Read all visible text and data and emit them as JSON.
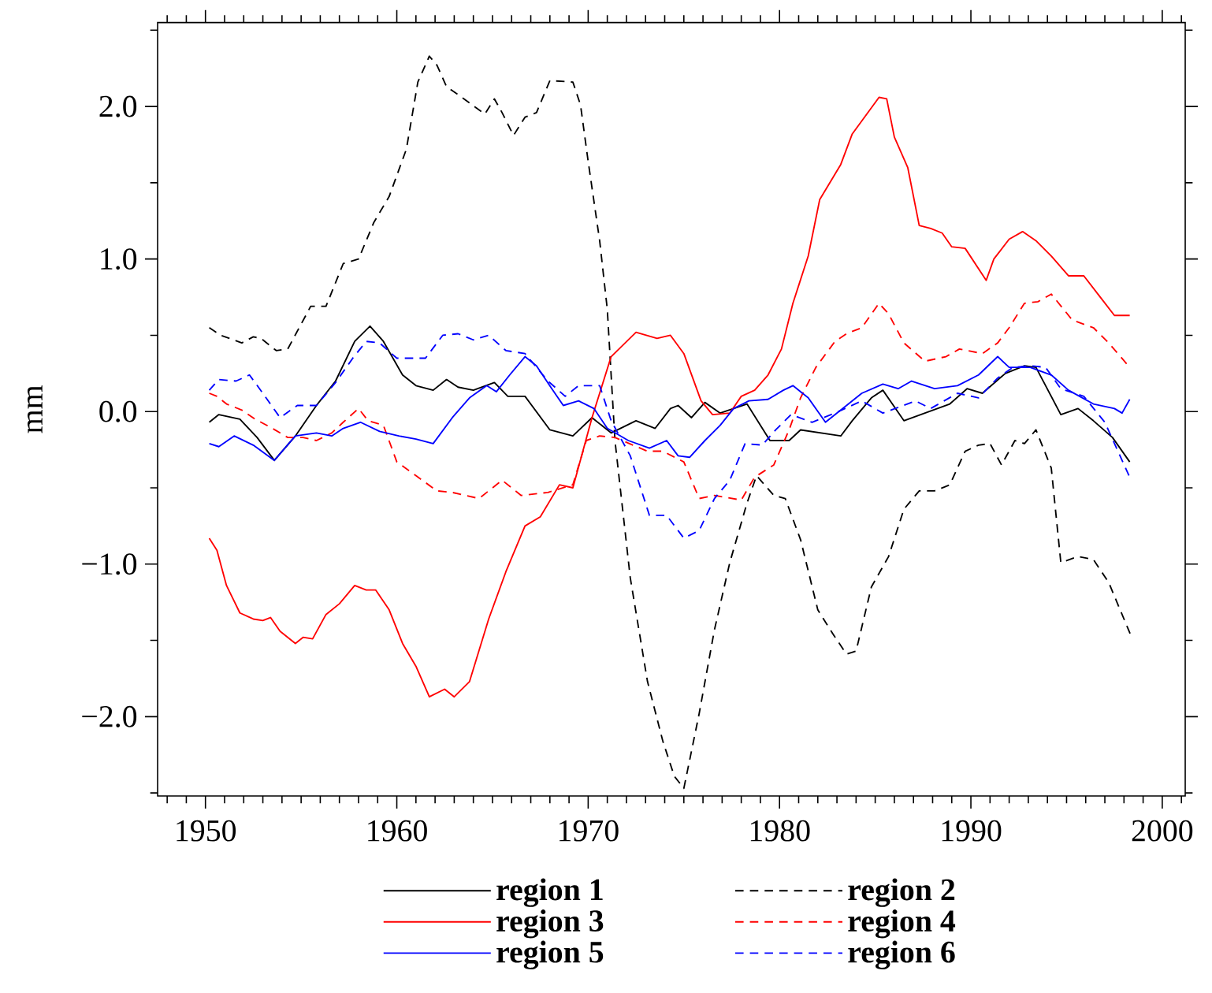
{
  "chart_data": {
    "type": "line",
    "ylabel": "mm",
    "xlim": [
      1947.5,
      2001.2
    ],
    "ylim": [
      -2.52,
      2.55
    ],
    "xticks": [
      {
        "value": 1948,
        "label": null
      },
      {
        "value": 1949,
        "label": null
      },
      1950,
      {
        "value": 1951,
        "label": null
      },
      {
        "value": 1952,
        "label": null
      },
      {
        "value": 1953,
        "label": null
      },
      {
        "value": 1954,
        "label": null
      },
      {
        "value": 1955,
        "label": null
      },
      {
        "value": 1956,
        "label": null
      },
      {
        "value": 1957,
        "label": null
      },
      {
        "value": 1958,
        "label": null
      },
      {
        "value": 1959,
        "label": null
      },
      1960,
      {
        "value": 1961,
        "label": null
      },
      {
        "value": 1962,
        "label": null
      },
      {
        "value": 1963,
        "label": null
      },
      {
        "value": 1964,
        "label": null
      },
      {
        "value": 1965,
        "label": null
      },
      {
        "value": 1966,
        "label": null
      },
      {
        "value": 1967,
        "label": null
      },
      {
        "value": 1968,
        "label": null
      },
      {
        "value": 1969,
        "label": null
      },
      1970,
      {
        "value": 1971,
        "label": null
      },
      {
        "value": 1972,
        "label": null
      },
      {
        "value": 1973,
        "label": null
      },
      {
        "value": 1974,
        "label": null
      },
      {
        "value": 1975,
        "label": null
      },
      {
        "value": 1976,
        "label": null
      },
      {
        "value": 1977,
        "label": null
      },
      {
        "value": 1978,
        "label": null
      },
      {
        "value": 1979,
        "label": null
      },
      1980,
      {
        "value": 1981,
        "label": null
      },
      {
        "value": 1982,
        "label": null
      },
      {
        "value": 1983,
        "label": null
      },
      {
        "value": 1984,
        "label": null
      },
      {
        "value": 1985,
        "label": null
      },
      {
        "value": 1986,
        "label": null
      },
      {
        "value": 1987,
        "label": null
      },
      {
        "value": 1988,
        "label": null
      },
      {
        "value": 1989,
        "label": null
      },
      1990,
      {
        "value": 1991,
        "label": null
      },
      {
        "value": 1992,
        "label": null
      },
      {
        "value": 1993,
        "label": null
      },
      {
        "value": 1994,
        "label": null
      },
      {
        "value": 1995,
        "label": null
      },
      {
        "value": 1996,
        "label": null
      },
      {
        "value": 1997,
        "label": null
      },
      {
        "value": 1998,
        "label": null
      },
      {
        "value": 1999,
        "label": null
      },
      2000,
      {
        "value": 2001,
        "label": null
      }
    ],
    "yticks": [
      {
        "value": -2.5,
        "label": null
      },
      {
        "value": -2,
        "label": "−2.0"
      },
      {
        "value": -1.5,
        "label": null
      },
      {
        "value": -1,
        "label": "−1.0"
      },
      {
        "value": -0.5,
        "label": null
      },
      {
        "value": 0,
        "label": "0.0"
      },
      {
        "value": 0.5,
        "label": null
      },
      {
        "value": 1,
        "label": "1.0"
      },
      {
        "value": 1.5,
        "label": null
      },
      {
        "value": 2,
        "label": "2.0"
      },
      {
        "value": 2.5,
        "label": null
      }
    ],
    "legend": "bottom",
    "grid": false,
    "marker": "none",
    "series": [
      {
        "name": "region 1",
        "color": "#000000",
        "line_style": "solid",
        "x": [
          1950.2,
          1950.7,
          1951.8,
          1952.7,
          1953.6,
          1954.7,
          1955.8,
          1956.8,
          1957.8,
          1958.6,
          1959.3,
          1960.3,
          1961.0,
          1961.9,
          1962.6,
          1963.2,
          1964.0,
          1965.1,
          1965.8,
          1966.7,
          1968.0,
          1969.2,
          1970.2,
          1971.2,
          1972.5,
          1973.5,
          1974.3,
          1974.7,
          1975.4,
          1976.1,
          1976.9,
          1978.3,
          1979.5,
          1980.5,
          1981.1,
          1983.2,
          1983.8,
          1984.8,
          1985.4,
          1986.5,
          1987.6,
          1988.9,
          1989.8,
          1990.6,
          1991.8,
          1992.8,
          1993.4,
          1994.7,
          1995.6,
          1996.4,
          1997.4,
          1998.3
        ],
        "values": [
          -0.07,
          -0.02,
          -0.05,
          -0.17,
          -0.32,
          -0.16,
          0.04,
          0.2,
          0.46,
          0.56,
          0.46,
          0.24,
          0.17,
          0.14,
          0.21,
          0.16,
          0.14,
          0.19,
          0.1,
          0.1,
          -0.12,
          -0.16,
          -0.04,
          -0.14,
          -0.06,
          -0.11,
          0.02,
          0.04,
          -0.04,
          0.06,
          -0.01,
          0.05,
          -0.19,
          -0.19,
          -0.12,
          -0.16,
          -0.06,
          0.09,
          0.14,
          -0.06,
          -0.01,
          0.05,
          0.15,
          0.12,
          0.25,
          0.3,
          0.29,
          -0.02,
          0.02,
          -0.06,
          -0.17,
          -0.33
        ]
      },
      {
        "name": "region 2",
        "color": "#000000",
        "line_style": "dashed",
        "x": [
          1950.2,
          1950.8,
          1951.9,
          1952.5,
          1952.9,
          1953.7,
          1954.3,
          1955.5,
          1956.3,
          1957.2,
          1958.0,
          1958.8,
          1959.6,
          1960.5,
          1961.1,
          1961.7,
          1962.1,
          1962.6,
          1963.4,
          1964.6,
          1965.1,
          1965.5,
          1966.1,
          1966.7,
          1967.3,
          1968.0,
          1969.2,
          1969.6,
          1970.0,
          1970.6,
          1971.0,
          1971.4,
          1972.2,
          1973.1,
          1973.9,
          1974.5,
          1975.0,
          1975.8,
          1976.6,
          1977.4,
          1978.3,
          1978.8,
          1979.7,
          1980.3,
          1981.1,
          1982.0,
          1982.8,
          1983.5,
          1984.0,
          1984.8,
          1985.7,
          1986.5,
          1987.3,
          1988.1,
          1988.9,
          1989.7,
          1990.4,
          1991.0,
          1991.6,
          1992.3,
          1992.8,
          1993.4,
          1994.2,
          1994.7,
          1995.6,
          1996.4,
          1997.2,
          1998.4
        ],
        "values": [
          0.55,
          0.5,
          0.45,
          0.49,
          0.48,
          0.4,
          0.41,
          0.69,
          0.69,
          0.97,
          1.0,
          1.24,
          1.41,
          1.72,
          2.16,
          2.33,
          2.27,
          2.13,
          2.06,
          1.95,
          2.05,
          1.96,
          1.81,
          1.93,
          1.96,
          2.17,
          2.16,
          2.01,
          1.64,
          1.12,
          0.67,
          -0.19,
          -1.09,
          -1.77,
          -2.16,
          -2.39,
          -2.47,
          -1.98,
          -1.43,
          -0.99,
          -0.6,
          -0.42,
          -0.55,
          -0.57,
          -0.84,
          -1.3,
          -1.46,
          -1.59,
          -1.57,
          -1.15,
          -0.95,
          -0.64,
          -0.52,
          -0.52,
          -0.48,
          -0.26,
          -0.22,
          -0.21,
          -0.35,
          -0.19,
          -0.21,
          -0.12,
          -0.37,
          -0.99,
          -0.95,
          -0.97,
          -1.12,
          -1.48
        ]
      },
      {
        "name": "region 3",
        "color": "#ff0000",
        "line_style": "solid",
        "x": [
          1950.2,
          1950.6,
          1951.1,
          1951.8,
          1952.5,
          1953.0,
          1953.4,
          1953.9,
          1954.7,
          1955.1,
          1955.6,
          1956.3,
          1957.0,
          1957.8,
          1958.4,
          1958.9,
          1959.6,
          1960.3,
          1961.0,
          1961.7,
          1962.5,
          1963.0,
          1963.8,
          1964.8,
          1965.7,
          1966.7,
          1967.5,
          1968.5,
          1969.2,
          1970.2,
          1971.2,
          1972.5,
          1973.6,
          1974.3,
          1975.0,
          1975.9,
          1976.5,
          1977.4,
          1978.0,
          1978.7,
          1979.4,
          1980.1,
          1980.7,
          1981.5,
          1982.1,
          1983.2,
          1983.8,
          1985.2,
          1985.6,
          1986.0,
          1986.7,
          1987.3,
          1987.9,
          1988.5,
          1989.0,
          1989.7,
          1990.8,
          1991.2,
          1992.0,
          1992.7,
          1993.4,
          1994.2,
          1995.1,
          1995.9,
          1996.7,
          1997.5,
          1998.3
        ],
        "values": [
          -0.83,
          -0.91,
          -1.14,
          -1.32,
          -1.36,
          -1.37,
          -1.35,
          -1.44,
          -1.52,
          -1.48,
          -1.49,
          -1.33,
          -1.26,
          -1.14,
          -1.17,
          -1.17,
          -1.3,
          -1.52,
          -1.67,
          -1.87,
          -1.82,
          -1.87,
          -1.77,
          -1.36,
          -1.05,
          -0.75,
          -0.69,
          -0.48,
          -0.5,
          -0.04,
          0.36,
          0.52,
          0.48,
          0.5,
          0.38,
          0.07,
          -0.02,
          -0.01,
          0.1,
          0.14,
          0.24,
          0.41,
          0.71,
          1.02,
          1.39,
          1.62,
          1.82,
          2.06,
          2.05,
          1.8,
          1.6,
          1.22,
          1.2,
          1.17,
          1.08,
          1.07,
          0.86,
          1.0,
          1.13,
          1.18,
          1.12,
          1.02,
          0.89,
          0.89,
          0.76,
          0.63,
          0.63
        ]
      },
      {
        "name": "region 4",
        "color": "#ff0000",
        "line_style": "dashed",
        "x": [
          1950.2,
          1950.6,
          1951.1,
          1951.9,
          1952.6,
          1953.5,
          1954.3,
          1955.1,
          1955.8,
          1956.6,
          1957.2,
          1958.0,
          1958.5,
          1959.3,
          1960.0,
          1961.0,
          1962.1,
          1962.9,
          1964.3,
          1965.5,
          1966.5,
          1967.9,
          1969.2,
          1969.9,
          1970.6,
          1971.4,
          1973.1,
          1973.9,
          1975.0,
          1975.8,
          1976.6,
          1978.0,
          1978.7,
          1979.7,
          1980.5,
          1981.1,
          1981.9,
          1982.9,
          1983.5,
          1984.3,
          1985.2,
          1985.7,
          1986.5,
          1987.6,
          1988.7,
          1989.4,
          1990.6,
          1991.4,
          1992.0,
          1992.8,
          1993.5,
          1994.2,
          1995.3,
          1996.4,
          1997.2,
          1998.3
        ],
        "values": [
          0.12,
          0.1,
          0.05,
          0.01,
          -0.05,
          -0.11,
          -0.17,
          -0.17,
          -0.19,
          -0.14,
          -0.07,
          0.02,
          -0.06,
          -0.09,
          -0.33,
          -0.42,
          -0.52,
          -0.53,
          -0.57,
          -0.45,
          -0.55,
          -0.53,
          -0.48,
          -0.19,
          -0.16,
          -0.17,
          -0.26,
          -0.26,
          -0.33,
          -0.57,
          -0.55,
          -0.58,
          -0.43,
          -0.35,
          -0.12,
          0.09,
          0.29,
          0.46,
          0.51,
          0.55,
          0.71,
          0.64,
          0.45,
          0.33,
          0.36,
          0.41,
          0.38,
          0.45,
          0.55,
          0.71,
          0.72,
          0.77,
          0.6,
          0.55,
          0.45,
          0.29
        ]
      },
      {
        "name": "region 5",
        "color": "#0000ff",
        "line_style": "solid",
        "x": [
          1950.2,
          1950.7,
          1951.5,
          1952.5,
          1953.6,
          1954.7,
          1955.8,
          1956.6,
          1957.2,
          1958.1,
          1959.1,
          1960.1,
          1961.0,
          1961.9,
          1962.9,
          1963.8,
          1964.7,
          1965.2,
          1965.9,
          1966.7,
          1967.3,
          1968.1,
          1968.7,
          1969.5,
          1970.3,
          1971.0,
          1972.1,
          1973.2,
          1974.1,
          1974.7,
          1975.3,
          1976.1,
          1976.9,
          1977.6,
          1978.4,
          1979.4,
          1980.2,
          1980.7,
          1981.5,
          1982.4,
          1983.5,
          1984.3,
          1985.4,
          1986.2,
          1986.9,
          1988.1,
          1989.3,
          1990.4,
          1991.4,
          1992.0,
          1993.1,
          1994.2,
          1995.1,
          1996.4,
          1997.5,
          1997.9,
          1998.3
        ],
        "values": [
          -0.21,
          -0.23,
          -0.16,
          -0.22,
          -0.32,
          -0.16,
          -0.14,
          -0.16,
          -0.11,
          -0.07,
          -0.13,
          -0.16,
          -0.18,
          -0.21,
          -0.04,
          0.09,
          0.17,
          0.13,
          0.24,
          0.36,
          0.3,
          0.15,
          0.04,
          0.07,
          0.02,
          -0.11,
          -0.19,
          -0.24,
          -0.19,
          -0.29,
          -0.3,
          -0.19,
          -0.09,
          0.02,
          0.07,
          0.08,
          0.14,
          0.17,
          0.09,
          -0.07,
          0.04,
          0.12,
          0.18,
          0.15,
          0.2,
          0.15,
          0.17,
          0.24,
          0.36,
          0.29,
          0.29,
          0.24,
          0.14,
          0.05,
          0.02,
          -0.01,
          0.08
        ]
      },
      {
        "name": "region 6",
        "color": "#0000ff",
        "line_style": "dashed",
        "x": [
          1950.2,
          1950.7,
          1951.6,
          1952.3,
          1953.0,
          1953.9,
          1954.8,
          1955.8,
          1956.8,
          1957.7,
          1958.4,
          1959.1,
          1960.0,
          1961.5,
          1962.4,
          1963.2,
          1964.0,
          1964.8,
          1965.7,
          1966.7,
          1967.9,
          1968.8,
          1969.5,
          1970.6,
          1971.2,
          1972.2,
          1973.2,
          1974.1,
          1975.0,
          1975.8,
          1976.6,
          1977.4,
          1978.2,
          1979.1,
          1979.8,
          1980.6,
          1981.7,
          1982.9,
          1984.3,
          1985.4,
          1987.1,
          1987.9,
          1989.3,
          1990.4,
          1991.4,
          1992.2,
          1993.1,
          1993.9,
          1994.7,
          1995.9,
          1997.0,
          1998.3
        ],
        "values": [
          0.14,
          0.21,
          0.2,
          0.24,
          0.12,
          -0.04,
          0.04,
          0.04,
          0.19,
          0.35,
          0.46,
          0.45,
          0.35,
          0.35,
          0.5,
          0.51,
          0.47,
          0.5,
          0.4,
          0.38,
          0.2,
          0.1,
          0.17,
          0.17,
          -0.06,
          -0.29,
          -0.68,
          -0.68,
          -0.83,
          -0.78,
          -0.57,
          -0.45,
          -0.21,
          -0.22,
          -0.12,
          -0.02,
          -0.07,
          -0.01,
          0.07,
          -0.01,
          0.07,
          0.02,
          0.12,
          0.09,
          0.22,
          0.29,
          0.3,
          0.29,
          0.15,
          0.1,
          -0.07,
          -0.43
        ]
      }
    ]
  }
}
